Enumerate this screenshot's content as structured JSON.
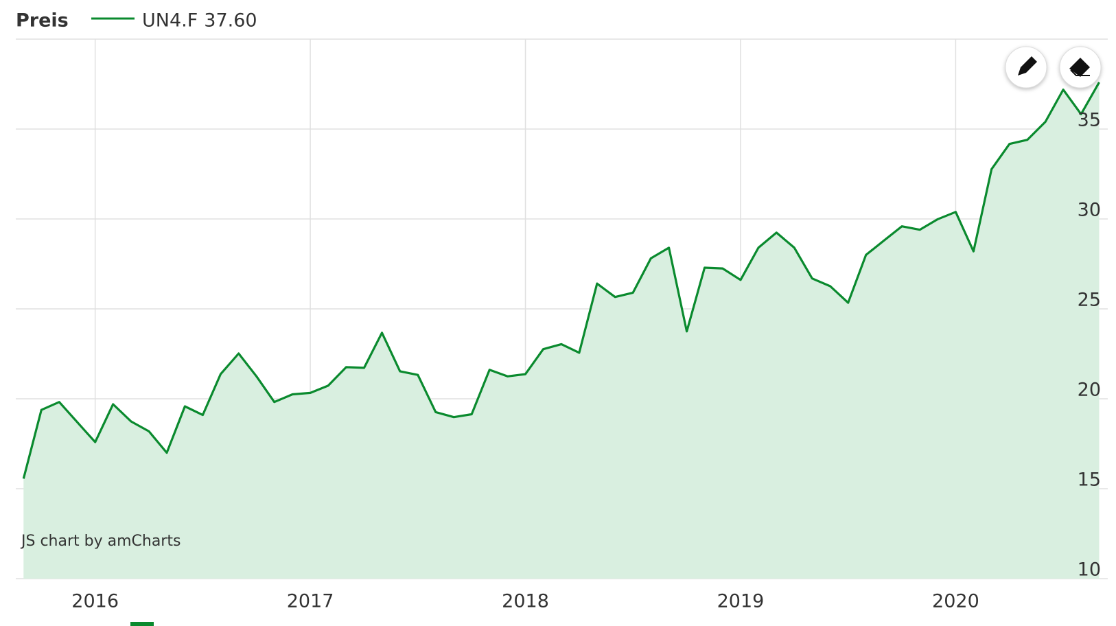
{
  "chart_data": {
    "type": "area",
    "title": "Preis",
    "watermark": "JS chart by amCharts",
    "series": [
      {
        "name": "UN4.F",
        "legend_label": "37.60",
        "color": "#0a8a2e",
        "fill": "#d9efe0",
        "values": [
          15.56,
          19.38,
          19.82,
          18.7,
          17.59,
          19.7,
          18.74,
          18.19,
          17.0,
          19.58,
          19.1,
          21.37,
          22.52,
          21.25,
          19.82,
          20.25,
          20.33,
          20.73,
          21.76,
          21.72,
          23.67,
          21.53,
          21.33,
          19.26,
          18.98,
          19.14,
          21.61,
          21.25,
          21.37,
          22.76,
          23.04,
          22.56,
          26.41,
          25.66,
          25.9,
          27.81,
          28.4,
          23.75,
          27.29,
          27.25,
          26.61,
          28.4,
          29.24,
          28.4,
          26.69,
          26.26,
          25.34,
          28.0,
          28.8,
          29.59,
          29.4,
          29.99,
          30.39,
          28.2,
          32.77,
          34.17,
          34.4,
          35.4,
          37.19,
          35.83,
          37.6
        ]
      }
    ],
    "x": [
      2015.667,
      2015.75,
      2015.833,
      2015.917,
      2016.0,
      2016.083,
      2016.167,
      2016.25,
      2016.333,
      2016.417,
      2016.5,
      2016.583,
      2016.667,
      2016.75,
      2016.833,
      2016.917,
      2017.0,
      2017.083,
      2017.167,
      2017.25,
      2017.333,
      2017.417,
      2017.5,
      2017.583,
      2017.667,
      2017.75,
      2017.833,
      2017.917,
      2018.0,
      2018.083,
      2018.167,
      2018.25,
      2018.333,
      2018.417,
      2018.5,
      2018.583,
      2018.667,
      2018.75,
      2018.833,
      2018.917,
      2019.0,
      2019.083,
      2019.167,
      2019.25,
      2019.333,
      2019.417,
      2019.5,
      2019.583,
      2019.667,
      2019.75,
      2019.833,
      2019.917,
      2020.0,
      2020.083,
      2020.167,
      2020.25,
      2020.333,
      2020.417,
      2020.5,
      2020.583,
      2020.667
    ],
    "xlim": [
      2015.631,
      2020.707
    ],
    "xticks": [
      2016,
      2017,
      2018,
      2019,
      2020
    ],
    "ylim": [
      10,
      40
    ],
    "yticks": [
      10,
      15,
      20,
      25,
      30,
      35
    ],
    "grid": true
  }
}
